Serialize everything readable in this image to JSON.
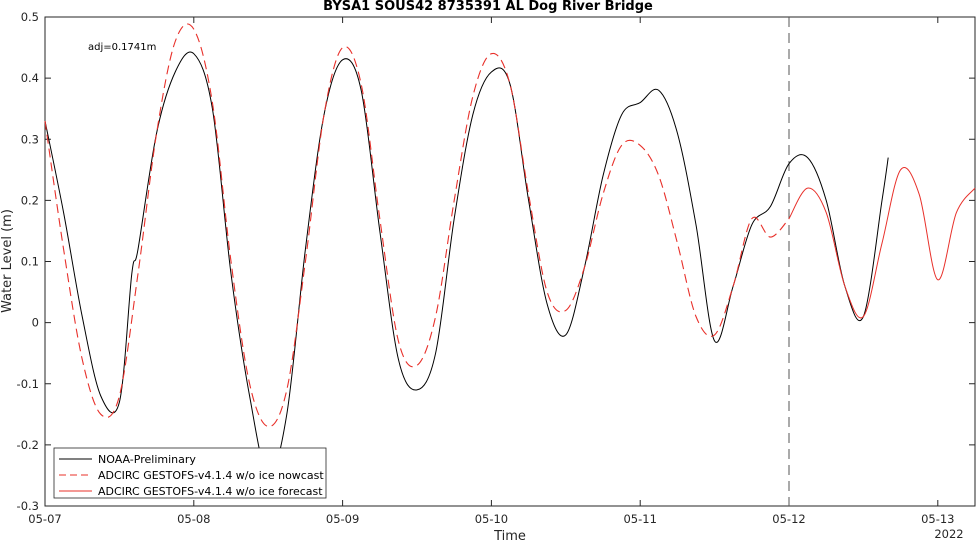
{
  "chart_data": {
    "type": "line",
    "title": "BYSA1 SOUS42 8735391 AL Dog River Bridge",
    "xlabel": "Time",
    "ylabel": "Water Level (m)",
    "year_label": "2022",
    "annotation": "adj=0.1741m",
    "xlim": [
      "05-07 00:00",
      "05-13 06:00"
    ],
    "ylim": [
      -0.3,
      0.5
    ],
    "x_ticks": [
      "05-07",
      "05-08",
      "05-09",
      "05-10",
      "05-11",
      "05-12",
      "05-13"
    ],
    "y_ticks": [
      "-0.3",
      "-0.2",
      "-0.1",
      "0",
      "0.1",
      "0.2",
      "0.3",
      "0.4",
      "0.5"
    ],
    "nowcast_forecast_split": "05-12 00:00",
    "legend_position": "lower-left",
    "grid": false,
    "series": [
      {
        "name": "NOAA-Preliminary",
        "color": "#000000",
        "style": "solid",
        "x": [
          "05-07 00:00",
          "05-07 03:00",
          "05-07 06:00",
          "05-07 09:00",
          "05-07 12:00",
          "05-07 14:00",
          "05-07 15:00",
          "05-07 18:00",
          "05-07 21:00",
          "05-08 00:00",
          "05-08 03:00",
          "05-08 06:00",
          "05-08 09:00",
          "05-08 12:00",
          "05-08 15:00",
          "05-08 18:00",
          "05-08 21:00",
          "05-09 00:00",
          "05-09 03:00",
          "05-09 06:00",
          "05-09 09:00",
          "05-09 12:00",
          "05-09 15:00",
          "05-09 18:00",
          "05-09 21:00",
          "05-10 00:00",
          "05-10 03:00",
          "05-10 06:00",
          "05-10 09:00",
          "05-10 12:00",
          "05-10 15:00",
          "05-10 18:00",
          "05-10 21:00",
          "05-11 00:00",
          "05-11 03:00",
          "05-11 06:00",
          "05-11 09:00",
          "05-11 12:00",
          "05-11 15:00",
          "05-11 18:00",
          "05-11 21:00",
          "05-12 00:00",
          "05-12 03:00",
          "05-12 06:00",
          "05-12 09:00",
          "05-12 12:00",
          "05-12 15:00",
          "05-12 16:00"
        ],
        "values": [
          0.33,
          0.18,
          0.01,
          -0.12,
          -0.13,
          0.08,
          0.12,
          0.31,
          0.41,
          0.44,
          0.35,
          0.08,
          -0.12,
          -0.25,
          -0.15,
          0.12,
          0.34,
          0.43,
          0.38,
          0.15,
          -0.06,
          -0.11,
          -0.05,
          0.17,
          0.34,
          0.41,
          0.39,
          0.2,
          0.03,
          -0.02,
          0.09,
          0.24,
          0.34,
          0.36,
          0.38,
          0.31,
          0.16,
          -0.03,
          0.06,
          0.16,
          0.19,
          0.26,
          0.27,
          0.2,
          0.06,
          0.01,
          0.2,
          0.27
        ]
      },
      {
        "name": "ADCIRC GESTOFS-v4.1.4 w/o ice nowcast",
        "color": "#e8302a",
        "style": "dashed",
        "x": [
          "05-07 00:00",
          "05-07 03:00",
          "05-07 06:00",
          "05-07 09:00",
          "05-07 12:00",
          "05-07 15:00",
          "05-07 18:00",
          "05-07 21:00",
          "05-08 00:00",
          "05-08 03:00",
          "05-08 06:00",
          "05-08 09:00",
          "05-08 12:00",
          "05-08 15:00",
          "05-08 18:00",
          "05-08 21:00",
          "05-09 00:00",
          "05-09 03:00",
          "05-09 06:00",
          "05-09 09:00",
          "05-09 12:00",
          "05-09 15:00",
          "05-09 18:00",
          "05-09 21:00",
          "05-10 00:00",
          "05-10 03:00",
          "05-10 06:00",
          "05-10 09:00",
          "05-10 12:00",
          "05-10 15:00",
          "05-10 18:00",
          "05-10 21:00",
          "05-11 00:00",
          "05-11 03:00",
          "05-11 06:00",
          "05-11 09:00",
          "05-11 12:00",
          "05-11 15:00",
          "05-11 18:00",
          "05-11 21:00",
          "05-12 00:00"
        ],
        "values": [
          0.33,
          0.12,
          -0.06,
          -0.15,
          -0.12,
          0.08,
          0.31,
          0.46,
          0.48,
          0.36,
          0.1,
          -0.1,
          -0.17,
          -0.11,
          0.1,
          0.34,
          0.45,
          0.39,
          0.17,
          -0.03,
          -0.07,
          0.01,
          0.2,
          0.37,
          0.44,
          0.39,
          0.21,
          0.05,
          0.02,
          0.09,
          0.21,
          0.29,
          0.29,
          0.24,
          0.13,
          0.01,
          -0.02,
          0.06,
          0.17,
          0.14,
          0.17
        ]
      },
      {
        "name": "ADCIRC GESTOFS-v4.1.4 w/o ice forecast",
        "color": "#e8302a",
        "style": "solid",
        "x": [
          "05-12 00:00",
          "05-12 03:00",
          "05-12 06:00",
          "05-12 09:00",
          "05-12 12:00",
          "05-12 15:00",
          "05-12 18:00",
          "05-12 21:00",
          "05-13 00:00",
          "05-13 03:00",
          "05-13 06:00"
        ],
        "values": [
          0.17,
          0.22,
          0.18,
          0.06,
          0.01,
          0.13,
          0.25,
          0.21,
          0.07,
          0.18,
          0.22
        ]
      }
    ]
  }
}
